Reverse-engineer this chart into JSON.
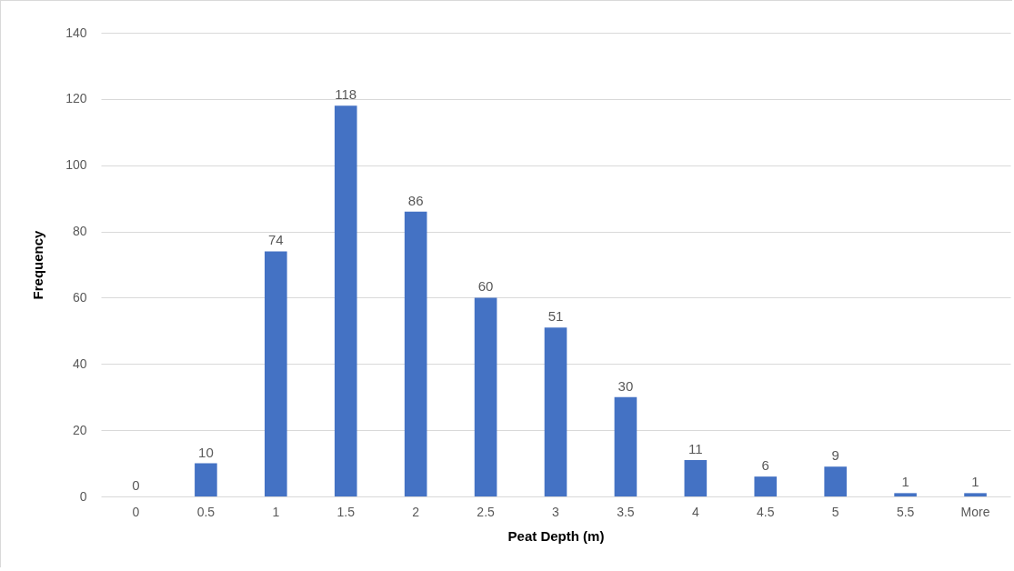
{
  "chart_data": {
    "type": "bar",
    "xlabel": "Peat Depth (m)",
    "ylabel": "Frequency",
    "categories": [
      "0",
      "0.5",
      "1",
      "1.5",
      "2",
      "2.5",
      "3",
      "3.5",
      "4",
      "4.5",
      "5",
      "5.5",
      "More"
    ],
    "values": [
      0,
      10,
      74,
      118,
      86,
      60,
      51,
      30,
      11,
      6,
      9,
      1,
      1
    ],
    "color": "#4472c4",
    "ylim": [
      0,
      140
    ],
    "yticks": [
      0,
      20,
      40,
      60,
      80,
      100,
      120,
      140
    ],
    "grid": "y",
    "data_labels": true
  }
}
